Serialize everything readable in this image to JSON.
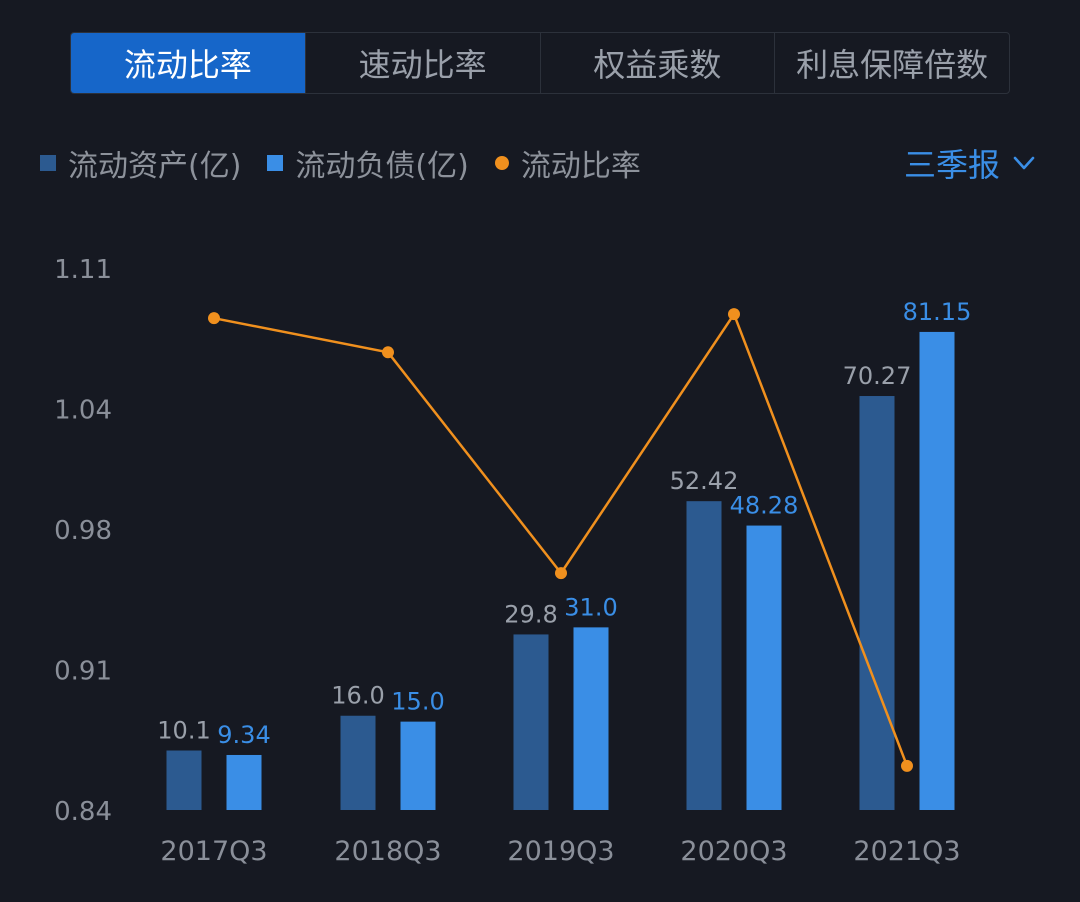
{
  "tabs": [
    {
      "label": "流动比率",
      "active": true
    },
    {
      "label": "速动比率",
      "active": false
    },
    {
      "label": "权益乘数",
      "active": false
    },
    {
      "label": "利息保障倍数",
      "active": false
    }
  ],
  "legend": [
    {
      "label": "流动资产(亿)",
      "shape": "square",
      "color": "#2c5a90"
    },
    {
      "label": "流动负债(亿)",
      "shape": "square",
      "color": "#3a8ee6"
    },
    {
      "label": "流动比率",
      "shape": "dot",
      "color": "#f0901e"
    }
  ],
  "period_selector": {
    "label": "三季报",
    "icon": "chevron-down-icon"
  },
  "chart_data": {
    "type": "bar",
    "categories": [
      "2017Q3",
      "2018Q3",
      "2019Q3",
      "2020Q3",
      "2021Q3"
    ],
    "series": [
      {
        "name": "流动资产(亿)",
        "type": "bar",
        "color": "#2c5a90",
        "labels": [
          "10.1",
          "16.0",
          "29.8",
          "52.42",
          "70.27"
        ],
        "values": [
          10.1,
          16.0,
          29.8,
          52.42,
          70.27
        ],
        "label_color": "#9aa0aa"
      },
      {
        "name": "流动负债(亿)",
        "type": "bar",
        "color": "#3a8ee6",
        "labels": [
          "9.34",
          "15.0",
          "31.0",
          "48.28",
          "81.15"
        ],
        "values": [
          9.34,
          15.0,
          31.0,
          48.28,
          81.15
        ],
        "label_color": "#3a8ee6"
      },
      {
        "name": "流动比率",
        "type": "line",
        "color": "#f0901e",
        "values": [
          1.085,
          1.068,
          0.958,
          1.087,
          0.862
        ]
      }
    ],
    "y_axis": {
      "ticks": [
        "1.11",
        "1.04",
        "0.98",
        "0.91",
        "0.84"
      ],
      "tick_values": [
        1.11,
        1.04,
        0.98,
        0.91,
        0.84
      ],
      "range": [
        0.84,
        1.11
      ]
    },
    "bar_axis_range": [
      0,
      92
    ],
    "grid": false
  }
}
